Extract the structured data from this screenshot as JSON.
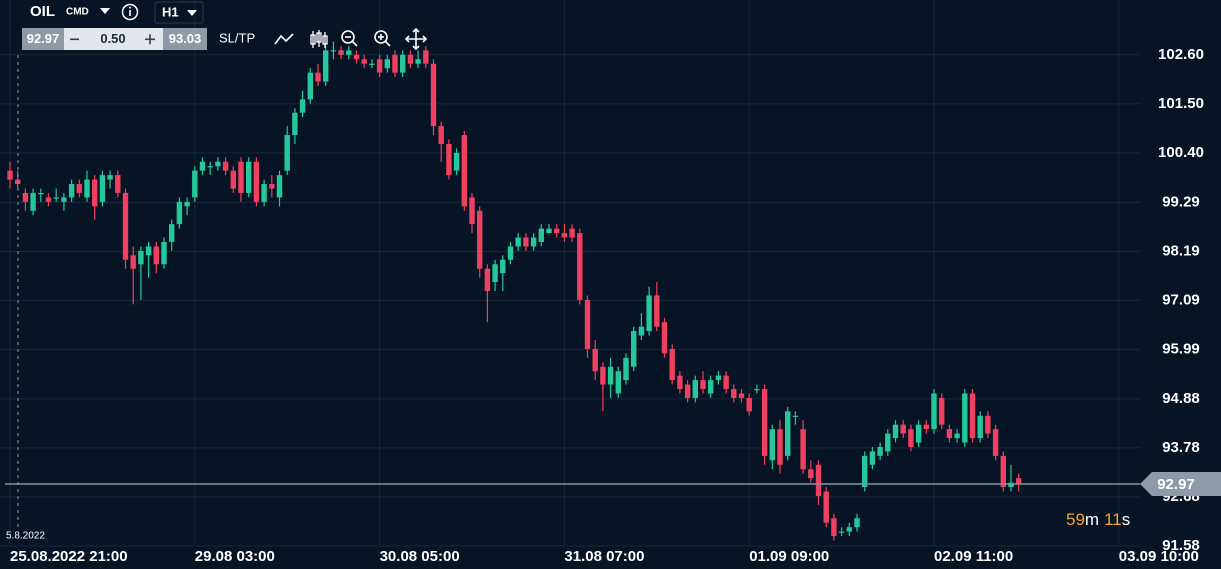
{
  "toolbar": {
    "symbol": "OIL",
    "badge": "CMD",
    "timeframe": "H1",
    "bid": "92.97",
    "size": "0.50",
    "ask": "93.03",
    "sltp": "SL/TP"
  },
  "chart_data": {
    "type": "candlestick",
    "up_color": "#26c79a",
    "down_color": "#f0405f",
    "ylim": [
      91.6,
      103.83
    ],
    "yticks": [
      {
        "value": 102.6,
        "label": "102.60"
      },
      {
        "value": 101.5,
        "label": "101.50"
      },
      {
        "value": 100.4,
        "label": "100.40"
      },
      99.29,
      98.19,
      97.09,
      95.99,
      94.88,
      93.78,
      92.68,
      91.58
    ],
    "xticks": [
      {
        "value": 0,
        "label": "25.08.2022 21:00"
      },
      {
        "value": 24,
        "label": "29.08 03:00"
      },
      {
        "value": 48,
        "label": "30.08 05:00"
      },
      {
        "value": 72,
        "label": "31.08 07:00"
      },
      {
        "value": 96,
        "label": "01.09 09:00"
      },
      {
        "value": 120,
        "label": "02.09 11:00"
      },
      {
        "value": 144,
        "label": "03.09 10:00"
      }
    ],
    "grid": true,
    "last_price": 92.97,
    "crosshair_label": "5.8.2022",
    "countdown": [
      "59",
      "m",
      "11",
      "s"
    ],
    "candles": [
      [
        100.0,
        100.2,
        99.6,
        99.8
      ],
      [
        99.8,
        100.0,
        99.6,
        99.7
      ],
      [
        99.5,
        99.6,
        99.1,
        99.3
      ],
      [
        99.1,
        99.6,
        99.0,
        99.5
      ],
      [
        99.5,
        99.6,
        99.3,
        99.5
      ],
      [
        99.4,
        99.5,
        99.2,
        99.3
      ],
      [
        99.4,
        99.6,
        99.3,
        99.4
      ],
      [
        99.3,
        99.5,
        99.1,
        99.4
      ],
      [
        99.4,
        99.8,
        99.3,
        99.7
      ],
      [
        99.7,
        99.8,
        99.4,
        99.5
      ],
      [
        99.4,
        100.0,
        99.3,
        99.8
      ],
      [
        99.8,
        99.9,
        98.9,
        99.2
      ],
      [
        99.3,
        100.0,
        99.2,
        99.9
      ],
      [
        99.8,
        100.0,
        99.6,
        99.9
      ],
      [
        99.9,
        100.0,
        99.4,
        99.5
      ],
      [
        99.5,
        99.6,
        97.8,
        98.0
      ],
      [
        98.1,
        98.3,
        97.0,
        97.8
      ],
      [
        97.9,
        98.3,
        97.1,
        98.2
      ],
      [
        98.1,
        98.4,
        97.6,
        98.3
      ],
      [
        98.3,
        98.4,
        97.7,
        97.9
      ],
      [
        97.9,
        98.5,
        97.8,
        98.4
      ],
      [
        98.4,
        98.9,
        98.2,
        98.8
      ],
      [
        98.8,
        99.4,
        98.7,
        99.3
      ],
      [
        99.2,
        99.4,
        99.0,
        99.3
      ],
      [
        99.4,
        100.1,
        99.3,
        100.0
      ],
      [
        100.0,
        100.3,
        99.9,
        100.2
      ],
      [
        100.1,
        100.2,
        99.9,
        100.1
      ],
      [
        100.1,
        100.3,
        100.0,
        100.2
      ],
      [
        100.2,
        100.3,
        99.9,
        100.0
      ],
      [
        100.0,
        100.1,
        99.5,
        99.6
      ],
      [
        100.2,
        100.3,
        99.3,
        99.5
      ],
      [
        99.5,
        100.3,
        99.4,
        100.2
      ],
      [
        100.2,
        100.3,
        99.2,
        99.3
      ],
      [
        99.3,
        99.8,
        99.2,
        99.7
      ],
      [
        99.7,
        99.9,
        99.4,
        99.6
      ],
      [
        99.4,
        100.0,
        99.2,
        99.9
      ],
      [
        100.0,
        101.0,
        99.9,
        100.8
      ],
      [
        100.8,
        101.4,
        100.6,
        101.3
      ],
      [
        101.3,
        101.8,
        101.2,
        101.6
      ],
      [
        101.6,
        102.3,
        101.5,
        102.2
      ],
      [
        102.2,
        102.4,
        101.9,
        102.0
      ],
      [
        102.0,
        102.8,
        101.9,
        102.7
      ],
      [
        102.7,
        102.9,
        102.5,
        102.7
      ],
      [
        102.7,
        102.8,
        102.5,
        102.6
      ],
      [
        102.6,
        102.8,
        102.5,
        102.7
      ],
      [
        102.6,
        102.7,
        102.4,
        102.5
      ],
      [
        102.5,
        102.6,
        102.3,
        102.4
      ],
      [
        102.4,
        102.5,
        102.3,
        102.4
      ],
      [
        102.5,
        102.6,
        102.1,
        102.2
      ],
      [
        102.3,
        102.6,
        102.2,
        102.5
      ],
      [
        102.6,
        102.7,
        102.1,
        102.2
      ],
      [
        102.2,
        102.7,
        102.1,
        102.6
      ],
      [
        102.6,
        102.7,
        102.3,
        102.4
      ],
      [
        102.4,
        102.7,
        102.3,
        102.5
      ],
      [
        102.7,
        102.8,
        102.3,
        102.4
      ],
      [
        102.4,
        102.5,
        100.8,
        101.0
      ],
      [
        101.0,
        101.1,
        100.2,
        100.6
      ],
      [
        100.6,
        100.7,
        99.8,
        99.9
      ],
      [
        100.0,
        100.5,
        99.9,
        100.4
      ],
      [
        100.8,
        100.9,
        99.1,
        99.2
      ],
      [
        99.4,
        99.5,
        98.6,
        98.8
      ],
      [
        99.1,
        99.2,
        97.6,
        97.8
      ],
      [
        97.8,
        97.9,
        96.6,
        97.3
      ],
      [
        97.5,
        98.0,
        97.3,
        97.9
      ],
      [
        97.7,
        98.1,
        97.3,
        98.0
      ],
      [
        98.0,
        98.4,
        97.9,
        98.3
      ],
      [
        98.3,
        98.6,
        98.2,
        98.5
      ],
      [
        98.5,
        98.6,
        98.2,
        98.3
      ],
      [
        98.3,
        98.6,
        98.2,
        98.5
      ],
      [
        98.4,
        98.8,
        98.3,
        98.7
      ],
      [
        98.6,
        98.8,
        98.6,
        98.7
      ],
      [
        98.7,
        98.8,
        98.5,
        98.6
      ],
      [
        98.6,
        98.8,
        98.4,
        98.5
      ],
      [
        98.7,
        98.8,
        98.4,
        98.5
      ],
      [
        98.6,
        98.7,
        97.0,
        97.1
      ],
      [
        97.1,
        97.2,
        95.8,
        96.0
      ],
      [
        96.0,
        96.2,
        95.3,
        95.5
      ],
      [
        95.6,
        95.7,
        94.6,
        95.2
      ],
      [
        95.2,
        95.8,
        94.9,
        95.6
      ],
      [
        95.0,
        95.6,
        94.9,
        95.5
      ],
      [
        95.3,
        95.9,
        95.2,
        95.8
      ],
      [
        95.6,
        96.5,
        95.5,
        96.4
      ],
      [
        96.3,
        96.8,
        96.2,
        96.5
      ],
      [
        96.4,
        97.4,
        96.3,
        97.2
      ],
      [
        97.2,
        97.5,
        96.4,
        96.5
      ],
      [
        96.6,
        96.7,
        95.8,
        95.9
      ],
      [
        96.0,
        96.1,
        95.2,
        95.3
      ],
      [
        95.4,
        95.5,
        95.0,
        95.1
      ],
      [
        95.2,
        95.3,
        94.8,
        94.9
      ],
      [
        94.9,
        95.4,
        94.8,
        95.3
      ],
      [
        95.3,
        95.5,
        95.0,
        95.1
      ],
      [
        95.0,
        95.4,
        94.9,
        95.3
      ],
      [
        95.3,
        95.5,
        95.2,
        95.4
      ],
      [
        95.4,
        95.5,
        95.0,
        95.1
      ],
      [
        95.1,
        95.2,
        94.8,
        94.9
      ],
      [
        95.0,
        95.1,
        94.8,
        94.9
      ],
      [
        94.9,
        95.0,
        94.5,
        94.6
      ],
      [
        95.1,
        95.2,
        95.0,
        95.1
      ],
      [
        95.1,
        95.2,
        93.4,
        93.6
      ],
      [
        93.5,
        94.3,
        93.3,
        94.2
      ],
      [
        94.2,
        94.4,
        93.2,
        93.4
      ],
      [
        93.6,
        94.7,
        93.5,
        94.6
      ],
      [
        94.5,
        94.6,
        94.3,
        94.5
      ],
      [
        94.2,
        94.4,
        93.2,
        93.3
      ],
      [
        93.3,
        93.5,
        93.0,
        93.1
      ],
      [
        93.4,
        93.5,
        92.5,
        92.7
      ],
      [
        92.8,
        92.9,
        92.0,
        92.1
      ],
      [
        92.2,
        92.3,
        91.7,
        91.8
      ],
      [
        91.9,
        92.0,
        91.8,
        91.9
      ],
      [
        91.9,
        92.1,
        91.8,
        92.0
      ],
      [
        92.0,
        92.3,
        91.9,
        92.2
      ],
      [
        92.9,
        93.7,
        92.8,
        93.6
      ],
      [
        93.4,
        93.8,
        93.3,
        93.7
      ],
      [
        93.6,
        93.9,
        93.5,
        93.8
      ],
      [
        93.7,
        94.2,
        93.6,
        94.1
      ],
      [
        94.0,
        94.4,
        93.9,
        94.3
      ],
      [
        94.3,
        94.4,
        94.0,
        94.1
      ],
      [
        94.2,
        94.3,
        93.7,
        93.8
      ],
      [
        93.9,
        94.4,
        93.8,
        94.3
      ],
      [
        94.3,
        94.4,
        94.1,
        94.2
      ],
      [
        94.2,
        95.1,
        94.1,
        95.0
      ],
      [
        94.9,
        95.0,
        94.2,
        94.3
      ],
      [
        94.2,
        94.3,
        93.9,
        94.0
      ],
      [
        94.0,
        94.2,
        93.9,
        94.1
      ],
      [
        93.9,
        95.1,
        93.8,
        95.0
      ],
      [
        95.0,
        95.1,
        93.9,
        94.0
      ],
      [
        94.0,
        94.6,
        93.9,
        94.5
      ],
      [
        94.5,
        94.6,
        94.0,
        94.1
      ],
      [
        94.2,
        94.3,
        93.5,
        93.6
      ],
      [
        93.6,
        93.7,
        92.8,
        92.9
      ],
      [
        92.9,
        93.4,
        92.8,
        93.0
      ],
      [
        93.1,
        93.2,
        92.8,
        92.97
      ]
    ]
  }
}
